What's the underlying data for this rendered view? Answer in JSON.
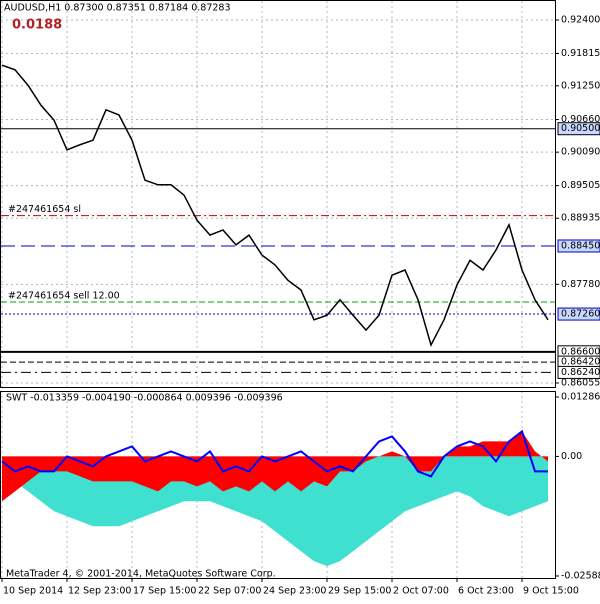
{
  "chart_data": [
    {
      "type": "line",
      "title": "AUDUSD,H1 0.87300 0.87351 0.87184 0.87283",
      "badge": "0.0188",
      "color": "#000000",
      "categories": [
        "10 Sep 2014",
        null,
        null,
        null,
        null,
        "12 Sep 23:00",
        null,
        null,
        null,
        null,
        "17 Sep 15:00",
        null,
        null,
        null,
        null,
        "22 Sep 07:00",
        null,
        null,
        null,
        null,
        "24 Sep 23:00",
        null,
        null,
        null,
        null,
        "29 Sep 15:00",
        null,
        null,
        null,
        null,
        "2 Oct 07:00",
        null,
        null,
        null,
        null,
        "6 Oct 23:00",
        null,
        null,
        null,
        null,
        "9 Oct 15:00",
        null,
        null
      ],
      "values": [
        0.9161,
        0.9153,
        0.9126,
        0.9091,
        0.9065,
        0.9013,
        0.9022,
        0.903,
        0.9083,
        0.9074,
        0.903,
        0.896,
        0.8952,
        0.8952,
        0.8934,
        0.889,
        0.8864,
        0.8873,
        0.8847,
        0.8864,
        0.8829,
        0.8812,
        0.8785,
        0.8768,
        0.8716,
        0.8724,
        0.8751,
        0.8724,
        0.8698,
        0.8724,
        0.8794,
        0.8803,
        0.8751,
        0.8672,
        0.8716,
        0.8777,
        0.882,
        0.8803,
        0.8838,
        0.8882,
        0.8803,
        0.8751,
        0.8716
      ],
      "ylim": [
        0.85985,
        0.9275
      ],
      "yticks": [
        {
          "value": 0.924,
          "label": "0.92400"
        },
        {
          "value": 0.91815,
          "label": "0.91815"
        },
        {
          "value": 0.9125,
          "label": "0.91250"
        },
        {
          "value": 0.9066,
          "label": "0.90660"
        },
        {
          "value": 0.9009,
          "label": "0.90090"
        },
        {
          "value": 0.89505,
          "label": "0.89505"
        },
        {
          "value": 0.88935,
          "label": "0.88935"
        },
        {
          "value": 0.8778,
          "label": "0.87780"
        },
        {
          "value": 0.86055,
          "label": "0.86055"
        }
      ],
      "grid": true,
      "levels": [
        {
          "value": 0.905,
          "label": "0.90500",
          "color": "#000000",
          "dash": "none",
          "box": "#c8d8ff"
        },
        {
          "value": 0.8845,
          "label": "0.88450",
          "color": "#0000cc",
          "dash": "14 6",
          "box": "#c8d8ff"
        },
        {
          "value": 0.8726,
          "label": "0.87260",
          "color": "#0000cc",
          "dash": "2 2",
          "box": "#c8d8ff"
        },
        {
          "value": 0.866,
          "label": "0.86600",
          "color": "#000000",
          "dash": "none",
          "box": "#ffffff"
        },
        {
          "value": 0.8642,
          "label": "0.86420",
          "color": "#000000",
          "dash": "6 3",
          "box": "#ffffff"
        },
        {
          "value": 0.8624,
          "label": "0.86240",
          "color": "#000000",
          "dash": "10 4 2 4",
          "box": "#ffffff"
        }
      ],
      "orders": [
        {
          "value": 0.8898,
          "label": "#247461654 sl",
          "color": "#cc0000",
          "dash": "8 3 2 3"
        },
        {
          "value": 0.8747,
          "label": "#247461654 sell 12.00",
          "color": "#00aa00",
          "dash": "6 3"
        }
      ]
    },
    {
      "type": "area",
      "title": "SWT -0.013359 -0.004190 -0.000864 0.009396 -0.009396",
      "footer": "MetaTrader 4, © 2001-2014, MetaQuotes Software Corp.",
      "ylim": [
        -0.02632,
        0.01394
      ],
      "yticks": [
        {
          "value": 0.012861,
          "label": "0.012861"
        },
        {
          "value": 0,
          "label": "0.00"
        },
        {
          "value": -0.025883,
          "label": "-0.025883"
        }
      ],
      "series": [
        {
          "color": "#40e0d0",
          "style": "area",
          "values": [
            -0.00324,
            -0.0054,
            -0.00756,
            -0.00972,
            -0.01188,
            -0.01296,
            -0.01404,
            -0.01512,
            -0.01512,
            -0.01512,
            -0.01404,
            -0.01296,
            -0.01188,
            -0.0108,
            -0.00972,
            -0.00972,
            -0.00972,
            -0.0108,
            -0.01188,
            -0.01296,
            -0.01404,
            -0.0162,
            -0.01836,
            -0.02052,
            -0.02268,
            -0.02376,
            -0.02268,
            -0.02052,
            -0.01836,
            -0.0162,
            -0.01404,
            -0.01188,
            -0.0108,
            -0.00972,
            -0.00864,
            -0.00756,
            -0.00864,
            -0.0108,
            -0.01188,
            -0.01296,
            -0.01188,
            -0.0108,
            -0.00972
          ]
        },
        {
          "color": "#ff0000",
          "style": "area",
          "values": [
            -0.00972,
            -0.00756,
            -0.0054,
            -0.00324,
            -0.00324,
            -0.00324,
            -0.00432,
            -0.0054,
            -0.0054,
            -0.0054,
            -0.0054,
            -0.00648,
            -0.00756,
            -0.0054,
            -0.0054,
            -0.00648,
            -0.0054,
            -0.00756,
            -0.00648,
            -0.00756,
            -0.0054,
            -0.00756,
            -0.0054,
            -0.00756,
            -0.0054,
            -0.00648,
            -0.00324,
            -0.00324,
            -0.00108,
            0,
            0.00108,
            0,
            -0.00324,
            -0.00324,
            0,
            0.00216,
            0.00216,
            0.00324,
            0.00324,
            0.00324,
            0.0054,
            0.00108,
            -0.00108
          ]
        },
        {
          "color": "#0000ff",
          "style": "line",
          "values": [
            -0.00108,
            -0.00324,
            -0.00216,
            -0.00324,
            -0.00324,
            0,
            -0.00108,
            -0.00216,
            0,
            0.00108,
            0.00216,
            -0.00108,
            0,
            0.00108,
            0,
            -0.00108,
            0.00108,
            -0.00324,
            -0.00216,
            -0.00324,
            0,
            -0.00108,
            0,
            0.00108,
            -0.00108,
            -0.00324,
            -0.00216,
            -0.00324,
            0,
            0.00324,
            0.00432,
            0.00108,
            -0.00324,
            -0.00432,
            0,
            0.00216,
            0.00324,
            0.00216,
            -0.00108,
            0.00324,
            0.0054,
            -0.00324,
            -0.00324
          ]
        }
      ]
    }
  ]
}
